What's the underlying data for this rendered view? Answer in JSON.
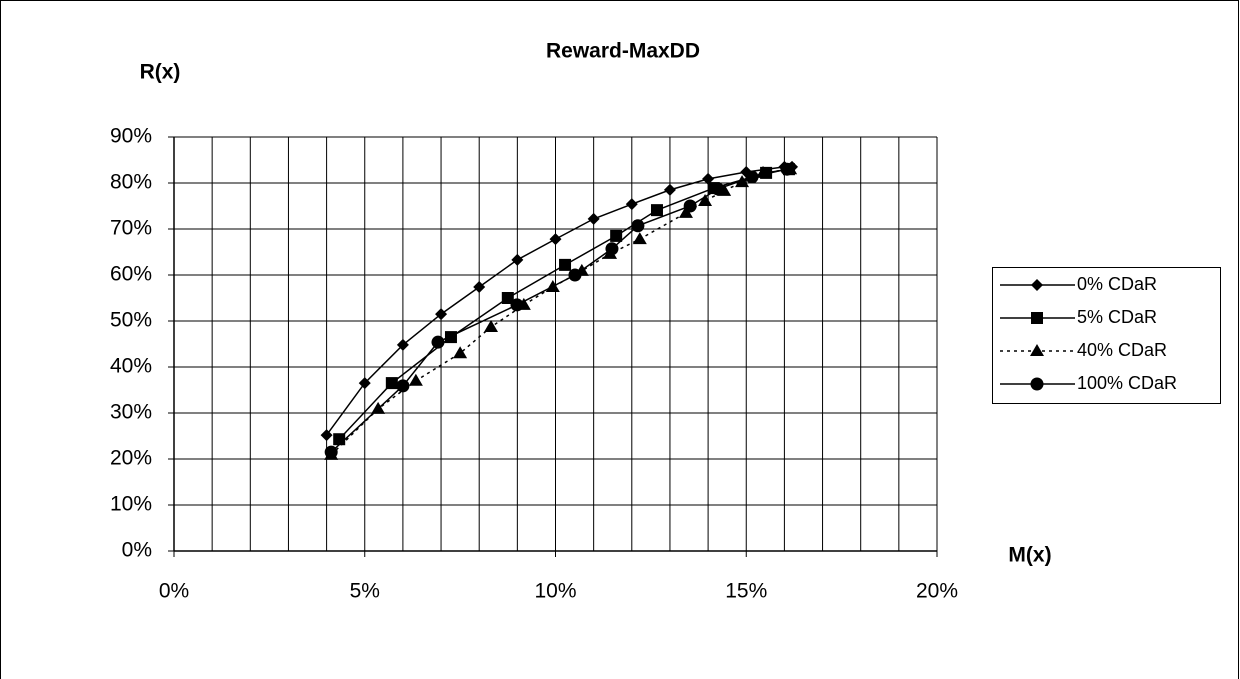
{
  "chart_data": {
    "type": "line",
    "title": "Reward-MaxDD",
    "y_label": "R(x)",
    "x_label": "M(x)",
    "xlim": [
      0,
      20
    ],
    "ylim": [
      0,
      90
    ],
    "xticks": [
      {
        "value": 0,
        "label": "0%"
      },
      {
        "value": 5,
        "label": "5%"
      },
      {
        "value": 10,
        "label": "10%"
      },
      {
        "value": 15,
        "label": "15%"
      },
      {
        "value": 20,
        "label": "20%"
      }
    ],
    "xgrid": [
      0,
      1,
      2,
      3,
      4,
      5,
      6,
      7,
      8,
      9,
      10,
      11,
      12,
      13,
      14,
      15,
      16,
      17,
      18,
      19,
      20
    ],
    "yticks": [
      {
        "value": 0,
        "label": "0%"
      },
      {
        "value": 10,
        "label": "10%"
      },
      {
        "value": 20,
        "label": "20%"
      },
      {
        "value": 30,
        "label": "30%"
      },
      {
        "value": 40,
        "label": "40%"
      },
      {
        "value": 50,
        "label": "50%"
      },
      {
        "value": 60,
        "label": "60%"
      },
      {
        "value": 70,
        "label": "70%"
      },
      {
        "value": 80,
        "label": "80%"
      },
      {
        "value": 90,
        "label": "90%"
      }
    ],
    "grid": true,
    "legend": "right",
    "series": [
      {
        "name": "0% CDaR",
        "color": "#000000",
        "marker": "diamond",
        "dash": "solid",
        "x": [
          4.0,
          5.0,
          6.0,
          7.0,
          8.0,
          9.0,
          10.0,
          11.0,
          12.0,
          13.0,
          14.0,
          15.0,
          16.0,
          16.2
        ],
        "values": [
          25.2,
          36.5,
          44.8,
          51.5,
          57.4,
          63.3,
          67.8,
          72.2,
          75.4,
          78.5,
          80.9,
          82.4,
          83.5,
          83.5
        ]
      },
      {
        "name": "5% CDaR",
        "color": "#000000",
        "marker": "square",
        "dash": "solid",
        "x": [
          4.33,
          5.71,
          7.26,
          8.75,
          10.25,
          11.59,
          12.66,
          14.15,
          15.52,
          16.12
        ],
        "values": [
          24.3,
          36.5,
          46.5,
          55.0,
          62.2,
          68.5,
          74.1,
          78.9,
          82.2,
          83.0
        ]
      },
      {
        "name": "40% CDaR",
        "color": "#000000",
        "marker": "triangle",
        "dash": "dotted",
        "x": [
          4.12,
          5.35,
          6.34,
          7.5,
          8.31,
          9.17,
          9.93,
          10.69,
          11.43,
          12.21,
          13.42,
          13.92,
          14.42,
          14.89,
          15.44,
          16.15
        ],
        "values": [
          20.9,
          30.9,
          37.0,
          43.0,
          48.7,
          53.5,
          57.4,
          60.9,
          64.6,
          67.8,
          73.5,
          76.1,
          78.3,
          80.2,
          82.2,
          83.0
        ]
      },
      {
        "name": "100% CDaR",
        "color": "#000000",
        "marker": "circle",
        "dash": "solid",
        "x": [
          4.12,
          6.0,
          6.92,
          8.99,
          10.51,
          11.48,
          12.16,
          13.53,
          14.26,
          15.15,
          16.07
        ],
        "values": [
          21.5,
          35.9,
          45.4,
          53.5,
          60.0,
          65.7,
          70.7,
          75.0,
          78.7,
          81.3,
          83.0
        ]
      }
    ]
  }
}
